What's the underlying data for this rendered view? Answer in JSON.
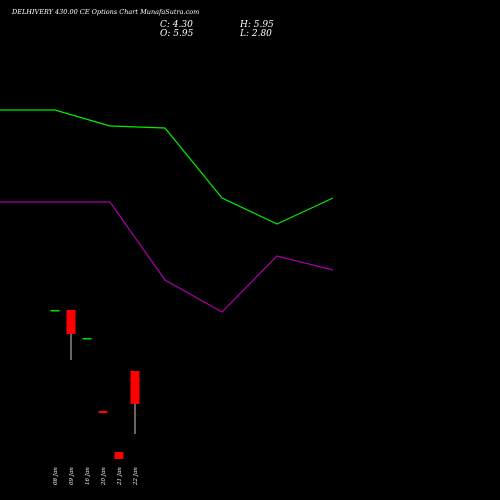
{
  "header": {
    "title": "DELHIVERY 430.00  CE Options  Chart MunafaSutra.com",
    "close_label": "C: 4.30",
    "open_label": "O: 5.95",
    "high_label": "H: 5.95",
    "low_label": "L: 2.80"
  },
  "colors": {
    "background": "#000000",
    "upper_line": "#00ee00",
    "lower_line": "#aa00aa",
    "bull_candle": "#00dd00",
    "bear_candle": "#ff0000",
    "text": "#ffffff"
  },
  "chart_data": {
    "type": "candlestick",
    "title": "DELHIVERY 430.00  CE Options  Chart MunafaSutra.com",
    "x_tick_labels": [
      "08 Jan",
      "09 Jan",
      "16 Jan",
      "20 Jan",
      "21 Jan",
      "22 Jan"
    ],
    "candles": [
      {
        "date": "08 Jan",
        "open": 9.0,
        "high": 9.0,
        "low": 9.0,
        "close": 9.0,
        "color": "green"
      },
      {
        "date": "09 Jan",
        "open": 9.0,
        "high": 9.0,
        "low": 6.5,
        "close": 7.8,
        "color": "red"
      },
      {
        "date": "16 Jan",
        "open": 7.6,
        "high": 7.6,
        "low": 7.6,
        "close": 7.6,
        "color": "green"
      },
      {
        "date": "20 Jan",
        "open": 3.95,
        "high": 3.95,
        "low": 3.85,
        "close": 3.85,
        "color": "red"
      },
      {
        "date": "21 Jan",
        "open": 1.9,
        "high": 1.9,
        "low": 1.55,
        "close": 1.55,
        "color": "red"
      },
      {
        "date": "22 Jan",
        "open": 5.95,
        "high": 5.95,
        "low": 2.8,
        "close": 4.3,
        "color": "red"
      }
    ],
    "upper_line": {
      "x": [
        "",
        "08 Jan",
        "09 Jan",
        "16 Jan",
        "20 Jan",
        "21 Jan",
        "22 Jan"
      ],
      "values": [
        19.0,
        19.0,
        18.2,
        18.1,
        14.6,
        13.3,
        14.6
      ],
      "color": "#00ee00"
    },
    "lower_line": {
      "x": [
        "",
        "08 Jan",
        "09 Jan",
        "16 Jan",
        "20 Jan",
        "21 Jan",
        "22 Jan"
      ],
      "values": [
        14.4,
        14.4,
        14.4,
        10.5,
        8.9,
        11.7,
        11.0
      ],
      "color": "#aa00aa"
    },
    "ylim": [
      0,
      24
    ],
    "grid": false
  }
}
